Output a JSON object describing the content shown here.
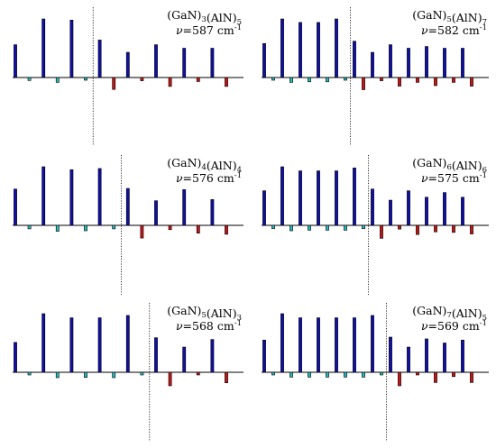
{
  "chart_data": [
    {
      "type": "bar",
      "label": "(GaN)3(AlN)5",
      "formula": [
        {
          "t": "(GaN)",
          "s": "3"
        },
        {
          "t": "(AlN)",
          "s": "5"
        }
      ],
      "nu_value": "587",
      "nu_unit": "cm",
      "nu_exp": "-1",
      "ylim": [
        -1,
        1
      ],
      "divider_after_index": 5,
      "colors": [
        "#1010a8",
        "#2ab8b8",
        "#1010a8",
        "#2ab8b8",
        "#1010a8",
        "#2ab8b8",
        "#1010a8",
        "#c01818",
        "#1010a8",
        "#c01818",
        "#1010a8",
        "#c01818",
        "#1010a8",
        "#c01818",
        "#1010a8",
        "#c01818"
      ],
      "values": [
        0.56,
        -0.11,
        1.0,
        -0.18,
        0.98,
        -0.1,
        0.64,
        -0.44,
        0.43,
        -0.12,
        0.56,
        -0.33,
        0.5,
        -0.15,
        0.5,
        -0.33
      ]
    },
    {
      "type": "bar",
      "label": "(GaN)5(AlN)7",
      "formula": [
        {
          "t": "(GaN)",
          "s": "5"
        },
        {
          "t": "(AlN)",
          "s": "7"
        }
      ],
      "nu_value": "582",
      "nu_unit": "cm",
      "nu_exp": "-1",
      "ylim": [
        -1,
        1
      ],
      "divider_after_index": 9,
      "colors": [
        "#1010a8",
        "#2ab8b8",
        "#1010a8",
        "#2ab8b8",
        "#1010a8",
        "#2ab8b8",
        "#1010a8",
        "#2ab8b8",
        "#1010a8",
        "#2ab8b8",
        "#1010a8",
        "#c01818",
        "#1010a8",
        "#c01818",
        "#1010a8",
        "#c01818",
        "#1010a8",
        "#c01818",
        "#1010a8",
        "#c01818",
        "#1010a8",
        "#c01818",
        "#1010a8",
        "#c01818"
      ],
      "values": [
        0.58,
        -0.1,
        1.0,
        -0.18,
        0.94,
        -0.16,
        0.94,
        -0.16,
        1.0,
        -0.1,
        0.62,
        -0.45,
        0.43,
        -0.12,
        0.56,
        -0.32,
        0.5,
        -0.18,
        0.53,
        -0.3,
        0.5,
        -0.18,
        0.5,
        -0.32
      ]
    },
    {
      "type": "bar",
      "label": "(GaN)4(AlN)4",
      "formula": [
        {
          "t": "(GaN)",
          "s": "4"
        },
        {
          "t": "(AlN)",
          "s": "4"
        }
      ],
      "nu_value": "576",
      "nu_unit": "cm",
      "nu_exp": "-1",
      "ylim": [
        -1,
        1
      ],
      "divider_after_index": 7,
      "colors": [
        "#1010a8",
        "#2ab8b8",
        "#1010a8",
        "#2ab8b8",
        "#1010a8",
        "#2ab8b8",
        "#1010a8",
        "#2ab8b8",
        "#1010a8",
        "#c01818",
        "#1010a8",
        "#c01818",
        "#1010a8",
        "#c01818",
        "#1010a8",
        "#c01818"
      ],
      "values": [
        0.62,
        -0.13,
        1.0,
        -0.22,
        0.95,
        -0.2,
        0.97,
        -0.13,
        0.63,
        -0.47,
        0.42,
        -0.16,
        0.61,
        -0.29,
        0.44,
        -0.33
      ]
    },
    {
      "type": "bar",
      "label": "(GaN)6(AlN)6",
      "formula": [
        {
          "t": "(GaN)",
          "s": "6"
        },
        {
          "t": "(AlN)",
          "s": "6"
        }
      ],
      "nu_value": "575",
      "nu_unit": "cm",
      "nu_exp": "-1",
      "ylim": [
        -1,
        1
      ],
      "divider_after_index": 11,
      "colors": [
        "#1010a8",
        "#2ab8b8",
        "#1010a8",
        "#2ab8b8",
        "#1010a8",
        "#2ab8b8",
        "#1010a8",
        "#2ab8b8",
        "#1010a8",
        "#2ab8b8",
        "#1010a8",
        "#2ab8b8",
        "#1010a8",
        "#c01818",
        "#1010a8",
        "#c01818",
        "#1010a8",
        "#c01818",
        "#1010a8",
        "#c01818",
        "#1010a8",
        "#c01818",
        "#1010a8",
        "#c01818"
      ],
      "values": [
        0.59,
        -0.12,
        1.0,
        -0.2,
        0.93,
        -0.18,
        0.93,
        -0.18,
        0.93,
        -0.18,
        0.98,
        -0.12,
        0.62,
        -0.48,
        0.43,
        -0.14,
        0.59,
        -0.34,
        0.48,
        -0.24,
        0.56,
        -0.26,
        0.48,
        -0.32
      ]
    },
    {
      "type": "bar",
      "label": "(GaN)5(AlN)3",
      "formula": [
        {
          "t": "(GaN)",
          "s": "5"
        },
        {
          "t": "(AlN)",
          "s": "3"
        }
      ],
      "nu_value": "568",
      "nu_unit": "cm",
      "nu_exp": "-1",
      "ylim": [
        -1,
        1
      ],
      "divider_after_index": 9,
      "colors": [
        "#1010a8",
        "#2ab8b8",
        "#1010a8",
        "#2ab8b8",
        "#1010a8",
        "#2ab8b8",
        "#1010a8",
        "#2ab8b8",
        "#1010a8",
        "#2ab8b8",
        "#1010a8",
        "#c01818",
        "#1010a8",
        "#c01818",
        "#1010a8",
        "#c01818"
      ],
      "values": [
        0.51,
        -0.1,
        1.0,
        -0.2,
        0.93,
        -0.19,
        0.93,
        -0.2,
        0.97,
        -0.1,
        0.59,
        -0.5,
        0.43,
        -0.1,
        0.56,
        -0.39
      ]
    },
    {
      "type": "bar",
      "label": "(GaN)7(AlN)5",
      "formula": [
        {
          "t": "(GaN)",
          "s": "7"
        },
        {
          "t": "(AlN)",
          "s": "5"
        }
      ],
      "nu_value": "569",
      "nu_unit": "cm",
      "nu_exp": "-1",
      "ylim": [
        -1,
        1
      ],
      "divider_after_index": 13,
      "colors": [
        "#1010a8",
        "#2ab8b8",
        "#1010a8",
        "#2ab8b8",
        "#1010a8",
        "#2ab8b8",
        "#1010a8",
        "#2ab8b8",
        "#1010a8",
        "#2ab8b8",
        "#1010a8",
        "#2ab8b8",
        "#1010a8",
        "#2ab8b8",
        "#1010a8",
        "#c01818",
        "#1010a8",
        "#c01818",
        "#1010a8",
        "#c01818",
        "#1010a8",
        "#c01818",
        "#1010a8",
        "#c01818"
      ],
      "values": [
        0.55,
        -0.1,
        1.0,
        -0.18,
        0.93,
        -0.18,
        0.93,
        -0.18,
        0.93,
        -0.18,
        0.93,
        -0.18,
        0.97,
        -0.1,
        0.6,
        -0.5,
        0.43,
        -0.1,
        0.57,
        -0.38,
        0.5,
        -0.16,
        0.55,
        -0.38
      ]
    }
  ]
}
